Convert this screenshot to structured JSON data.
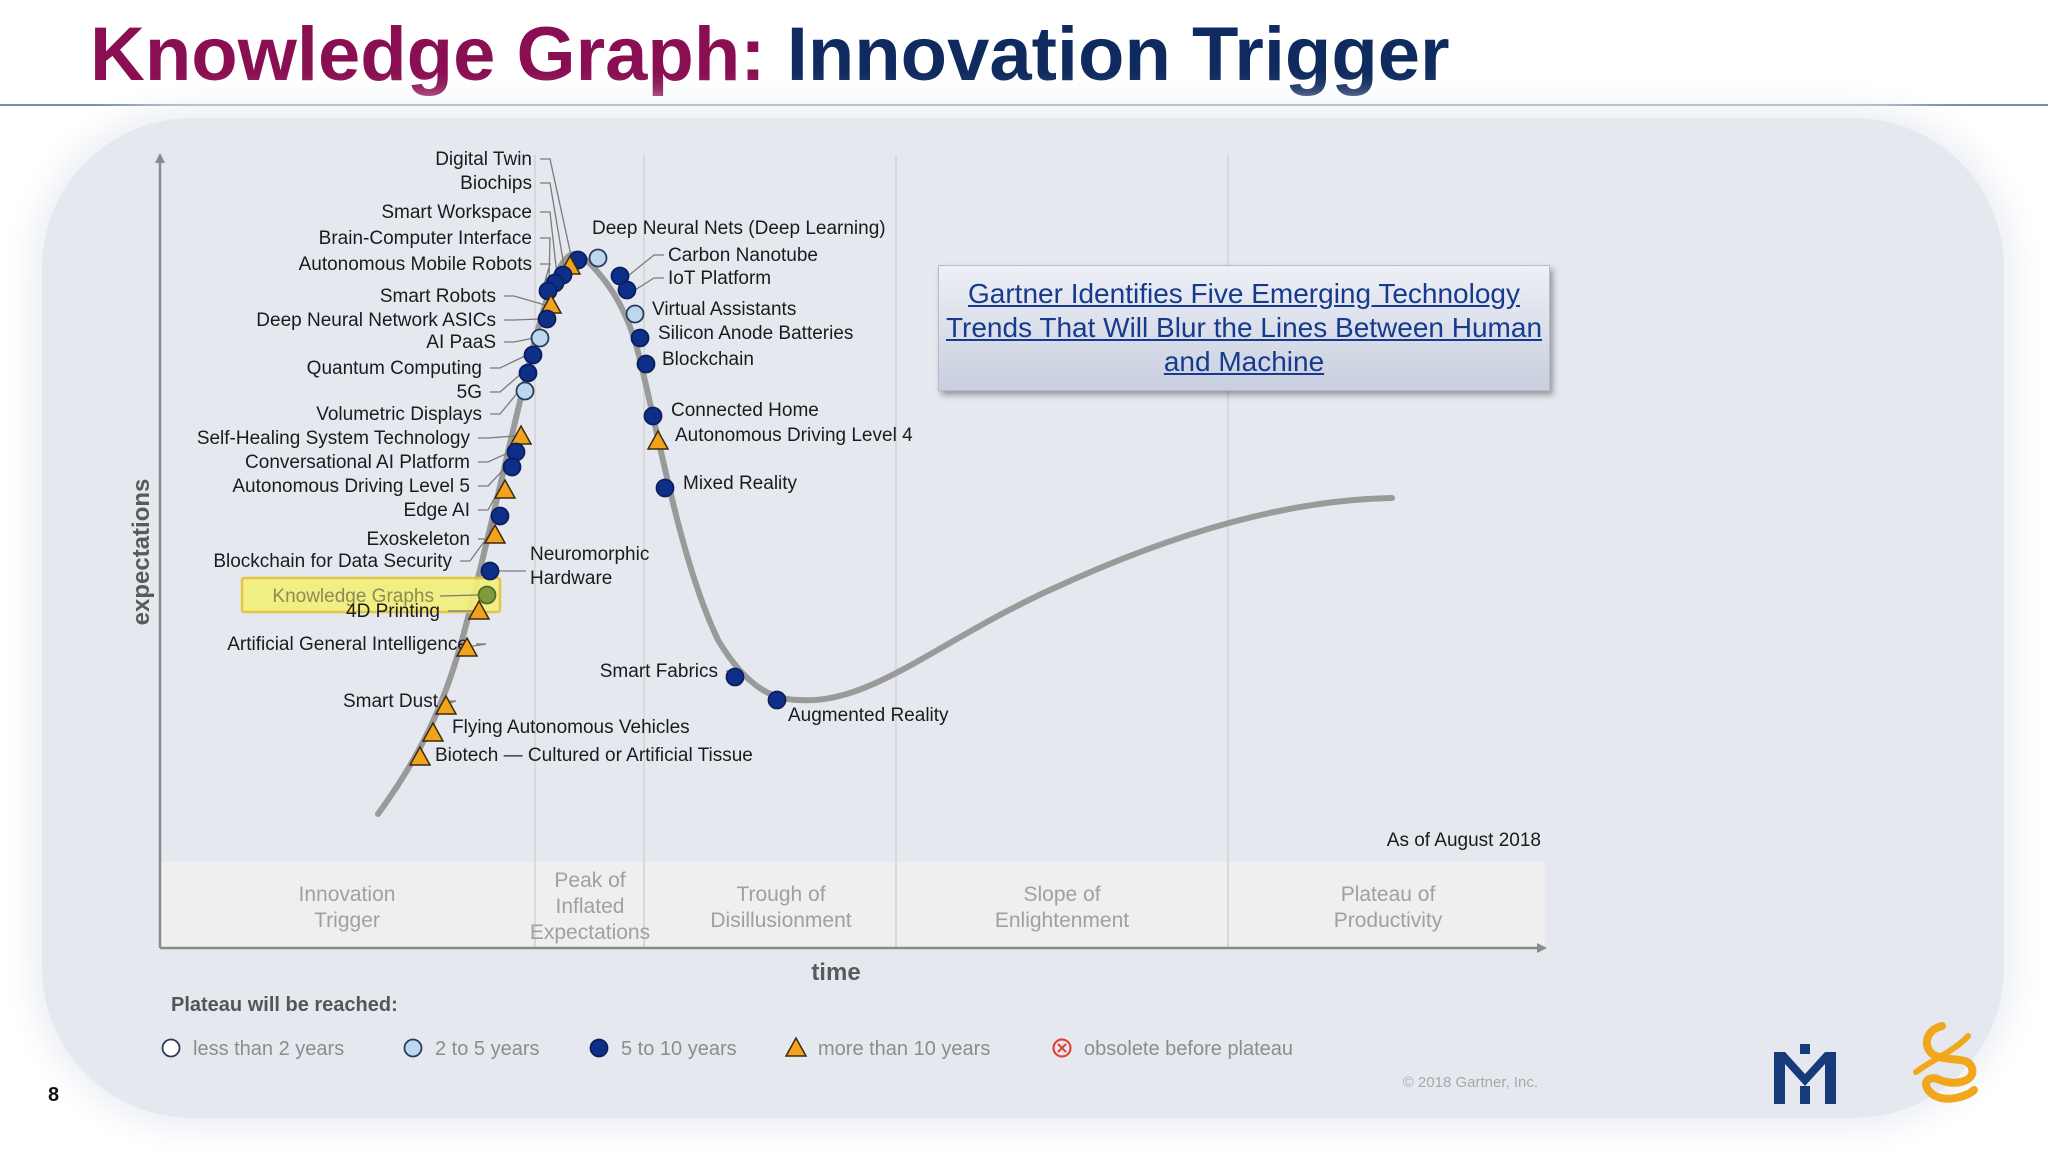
{
  "slide": {
    "title_prefix": "Knowledge Graph:",
    "title_suffix": "Innovation Trigger",
    "page_number": "8",
    "callout_text": "Gartner Identifies Five Emerging Technology Trends That Will Blur the Lines Between Human and Machine",
    "colors": {
      "title_prefix": "#8a0f52",
      "title_suffix": "#0f2a5e",
      "link": "#173b8c"
    },
    "logos": [
      "m-logo-icon",
      "astrazeneca-logo-icon"
    ]
  },
  "chart_data": {
    "type": "scatter",
    "xlabel": "time",
    "ylabel": "expectations",
    "as_of": "As of August 2018",
    "copyright": "© 2018 Gartner, Inc.",
    "phases": [
      [
        "Innovation",
        "Trigger"
      ],
      [
        "Peak of",
        "Inflated",
        "Expectations"
      ],
      [
        "Trough of",
        "Disillusionment"
      ],
      [
        "Slope of",
        "Enlightenment"
      ],
      [
        "Plateau of",
        "Productivity"
      ]
    ],
    "legend_title": "Plateau will be reached:",
    "legend": [
      {
        "key": "lt2",
        "label": "less than 2 years"
      },
      {
        "key": "2to5",
        "label": "2 to 5 years"
      },
      {
        "key": "5to10",
        "label": "5 to 10 years"
      },
      {
        "key": "gt10",
        "label": "more than 10 years"
      },
      {
        "key": "obsolete",
        "label": "obsolete before plateau"
      }
    ],
    "highlight": "Knowledge Graphs",
    "colors": {
      "curve": "#9a9a9a",
      "5to10": "#0d2f8a",
      "2to5": "#bcd7ee",
      "gt10": "#f3a21b",
      "highlight_box": "#f3ef7a",
      "highlight_dot": "#7d9b3c"
    },
    "points": [
      {
        "label": "Digital Twin",
        "group": "5to10",
        "side": "left"
      },
      {
        "label": "Biochips",
        "group": "gt10",
        "side": "left"
      },
      {
        "label": "Smart Workspace",
        "group": "5to10",
        "side": "left"
      },
      {
        "label": "Brain-Computer Interface",
        "group": "5to10",
        "side": "left"
      },
      {
        "label": "Autonomous Mobile Robots",
        "group": "5to10",
        "side": "left"
      },
      {
        "label": "Smart Robots",
        "group": "gt10",
        "side": "left"
      },
      {
        "label": "Deep Neural Network ASICs",
        "group": "5to10",
        "side": "left"
      },
      {
        "label": "AI PaaS",
        "group": "2to5",
        "side": "left"
      },
      {
        "label": "Quantum Computing",
        "group": "5to10",
        "side": "left"
      },
      {
        "label": "5G",
        "group": "5to10",
        "side": "left"
      },
      {
        "label": "Volumetric Displays",
        "group": "2to5",
        "side": "left"
      },
      {
        "label": "Self-Healing System Technology",
        "group": "gt10",
        "side": "left"
      },
      {
        "label": "Conversational AI Platform",
        "group": "5to10",
        "side": "left"
      },
      {
        "label": "Autonomous Driving Level 5",
        "group": "5to10",
        "side": "left"
      },
      {
        "label": "Edge AI",
        "group": "gt10",
        "side": "left"
      },
      {
        "label": "Exoskeleton",
        "group": "5to10",
        "side": "left"
      },
      {
        "label": "Blockchain for Data Security",
        "group": "gt10",
        "side": "left"
      },
      {
        "label": "Neuromorphic Hardware",
        "group": "5to10",
        "side": "right"
      },
      {
        "label": "Knowledge Graphs",
        "group": "5to10",
        "side": "left"
      },
      {
        "label": "4D Printing",
        "group": "gt10",
        "side": "left"
      },
      {
        "label": "Artificial General Intelligence",
        "group": "gt10",
        "side": "left"
      },
      {
        "label": "Smart Dust",
        "group": "gt10",
        "side": "left"
      },
      {
        "label": "Flying Autonomous Vehicles",
        "group": "gt10",
        "side": "right"
      },
      {
        "label": "Biotech — Cultured or Artificial Tissue",
        "group": "gt10",
        "side": "right"
      },
      {
        "label": "Deep Neural Nets (Deep Learning)",
        "group": "2to5",
        "side": "right"
      },
      {
        "label": "Carbon Nanotube",
        "group": "5to10",
        "side": "right"
      },
      {
        "label": "IoT Platform",
        "group": "5to10",
        "side": "right"
      },
      {
        "label": "Virtual Assistants",
        "group": "2to5",
        "side": "right"
      },
      {
        "label": "Silicon Anode Batteries",
        "group": "5to10",
        "side": "right"
      },
      {
        "label": "Blockchain",
        "group": "5to10",
        "side": "right"
      },
      {
        "label": "Connected Home",
        "group": "5to10",
        "side": "right"
      },
      {
        "label": "Autonomous Driving Level 4",
        "group": "gt10",
        "side": "right"
      },
      {
        "label": "Mixed Reality",
        "group": "5to10",
        "side": "right"
      },
      {
        "label": "Smart Fabrics",
        "group": "5to10",
        "side": "left"
      },
      {
        "label": "Augmented Reality",
        "group": "5to10",
        "side": "right"
      }
    ]
  }
}
